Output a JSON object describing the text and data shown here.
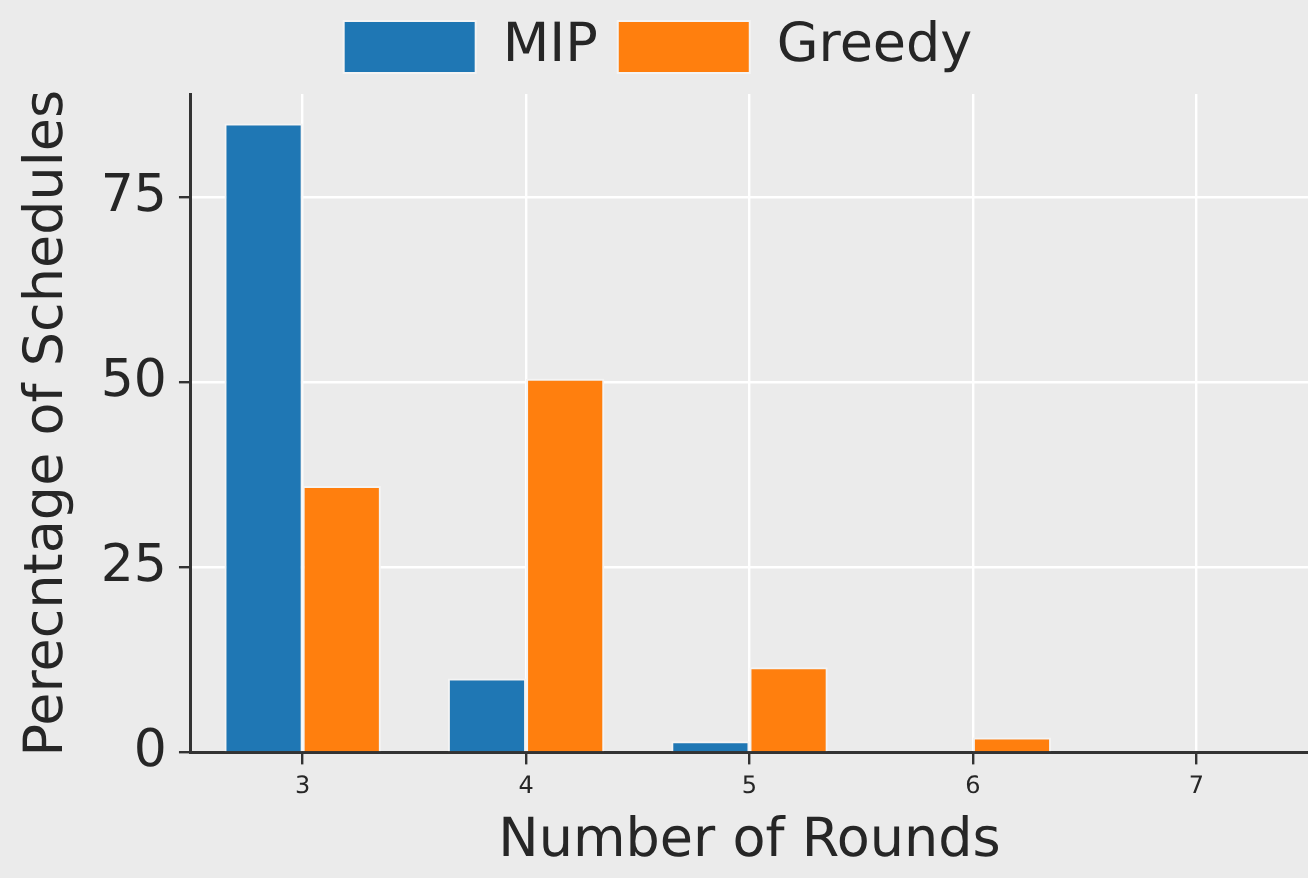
{
  "chart_data": {
    "type": "bar",
    "xlabel": "Number of Rounds",
    "ylabel": "Perecntage of Schedules",
    "categories": [
      "3",
      "4",
      "5",
      "6",
      "7"
    ],
    "series": [
      {
        "name": "MIP",
        "color": "#1f77b4",
        "values": [
          85,
          10,
          1.5,
          0,
          0
        ]
      },
      {
        "name": "Greedy",
        "color": "#ff7f0e",
        "values": [
          36,
          50.5,
          11.5,
          2,
          0
        ]
      }
    ],
    "ylim": [
      0,
      89
    ],
    "yticks": [
      0,
      25,
      50,
      75
    ],
    "grid": true,
    "legend": "top"
  }
}
